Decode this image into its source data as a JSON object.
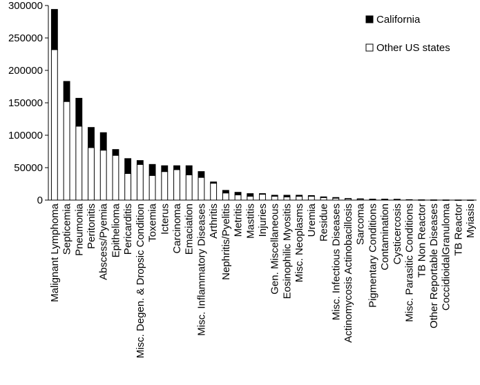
{
  "chart_data": {
    "type": "bar",
    "stacked": true,
    "title": "",
    "xlabel": "",
    "ylabel": "",
    "ylim": [
      0,
      300000
    ],
    "yticks": [
      0,
      50000,
      100000,
      150000,
      200000,
      250000,
      300000
    ],
    "ytick_labels": [
      "0",
      "50000",
      "100000",
      "150000",
      "200000",
      "250000",
      "300000"
    ],
    "grid": false,
    "legend_position": "top-right",
    "categories": [
      "Malignant Lymphoma",
      "Septicemia",
      "Pneumonia",
      "Peritonitis",
      "Abscess/Pyemia",
      "Epithelioma",
      "Pericarditis",
      "Misc. Degen. & Dropsic Condition",
      "Toxemia",
      "Icterus",
      "Carcinoma",
      "Emaciation",
      "Misc. Inflammatory Diseases",
      "Arthritis",
      "Nephritis/Pyelitis",
      "Metritis",
      "Mastitis",
      "Injuries",
      "Gen. Miscellaneous",
      "Eosinophilic Myositis",
      "Misc. Neoplasms",
      "Uremia",
      "Residue",
      "Misc. Infectious Diseases",
      "Actinomycosis Actinobacillosis",
      "Sarcoma",
      "Pigmentary Conditions",
      "Contamination",
      "Cysticercosis",
      "Misc. Parasitic Conditions",
      "TB Non Reactor",
      "Other Reportable Diseases",
      "CoccidioidalGranuloma",
      "TB Reactor",
      "Myiasis"
    ],
    "series": [
      {
        "name": "Other US states",
        "fill": "#ffffff",
        "values": [
          232000,
          152000,
          114000,
          81000,
          77000,
          69000,
          41000,
          55000,
          38000,
          44000,
          47000,
          39000,
          35000,
          26000,
          11000,
          8000,
          6000,
          9000,
          6000,
          5000,
          6000,
          6000,
          4000,
          3000,
          2000,
          1500,
          1000,
          1000,
          1000,
          500,
          300,
          200,
          150,
          100,
          50
        ]
      },
      {
        "name": "California",
        "fill": "#000000",
        "values": [
          62000,
          31000,
          43000,
          31000,
          27000,
          9000,
          23000,
          6000,
          17000,
          9000,
          6000,
          14000,
          9000,
          2000,
          4000,
          4000,
          4000,
          1000,
          1500,
          2500,
          1500,
          1000,
          1000,
          1000,
          500,
          500,
          500,
          500,
          300,
          200,
          100,
          100,
          50,
          50,
          50
        ]
      }
    ]
  },
  "legend": {
    "items": [
      {
        "label": "California",
        "fill": "#000000"
      },
      {
        "label": "Other US states",
        "fill": "#ffffff"
      }
    ]
  }
}
